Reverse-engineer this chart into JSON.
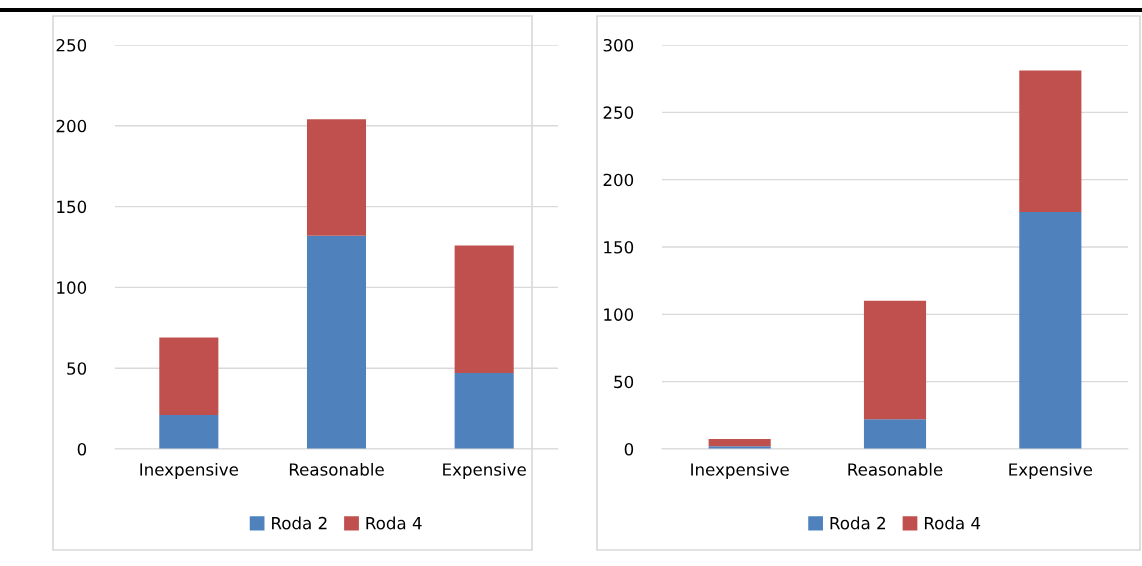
{
  "chart_data": [
    {
      "type": "bar",
      "stacked": true,
      "categories": [
        "Inexpensive",
        "Reasonable",
        "Expensive"
      ],
      "series": [
        {
          "name": "Roda 2",
          "color": "#4f81bd",
          "values": [
            21,
            132,
            47
          ]
        },
        {
          "name": "Roda 4",
          "color": "#c0504d",
          "values": [
            48,
            72,
            79
          ]
        }
      ],
      "ylim": [
        0,
        250
      ],
      "yticks": [
        0,
        50,
        100,
        150,
        200,
        250
      ],
      "grid": "y",
      "legend": "bottom"
    },
    {
      "type": "bar",
      "stacked": true,
      "categories": [
        "Inexpensive",
        "Reasonable",
        "Expensive"
      ],
      "series": [
        {
          "name": "Roda 2",
          "color": "#4f81bd",
          "values": [
            2,
            22,
            176
          ]
        },
        {
          "name": "Roda 4",
          "color": "#c0504d",
          "values": [
            5.5,
            88,
            105
          ]
        }
      ],
      "ylim": [
        0,
        300
      ],
      "yticks": [
        0,
        50,
        100,
        150,
        200,
        250,
        300
      ],
      "grid": "y",
      "legend": "bottom"
    }
  ]
}
